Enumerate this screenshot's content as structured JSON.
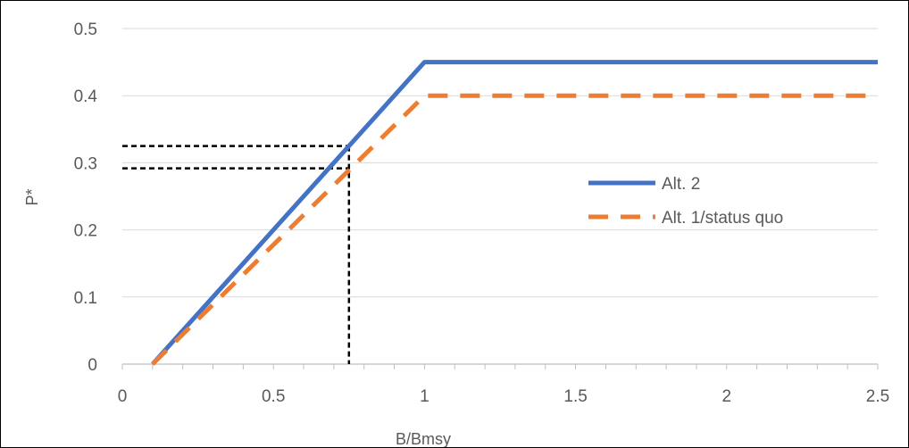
{
  "chart_data": {
    "type": "line",
    "title": "",
    "xlabel": "B/Bmsy",
    "ylabel": "P*",
    "xlim": [
      0,
      2.5
    ],
    "ylim": [
      0,
      0.5
    ],
    "x_ticks": [
      "0",
      "0.5",
      "1",
      "1.5",
      "2",
      "2.5"
    ],
    "y_ticks": [
      "0",
      "0.1",
      "0.2",
      "0.3",
      "0.4",
      "0.5"
    ],
    "grid": "horizontal",
    "legend_position": "right",
    "series": [
      {
        "name": "Alt. 2",
        "color": "#4472C4",
        "style": "solid",
        "x": [
          0.1,
          1.0,
          2.5
        ],
        "y": [
          0.0,
          0.45,
          0.45
        ]
      },
      {
        "name": "Alt. 1/status quo",
        "color": "#ED7D31",
        "style": "dashed",
        "x": [
          0.1,
          1.0,
          2.5
        ],
        "y": [
          0.0,
          0.4,
          0.4
        ]
      }
    ],
    "reference_lines": {
      "color": "#000000",
      "style": "dotted",
      "x_value": 0.75,
      "y_values": [
        0.325,
        0.2917
      ]
    }
  }
}
